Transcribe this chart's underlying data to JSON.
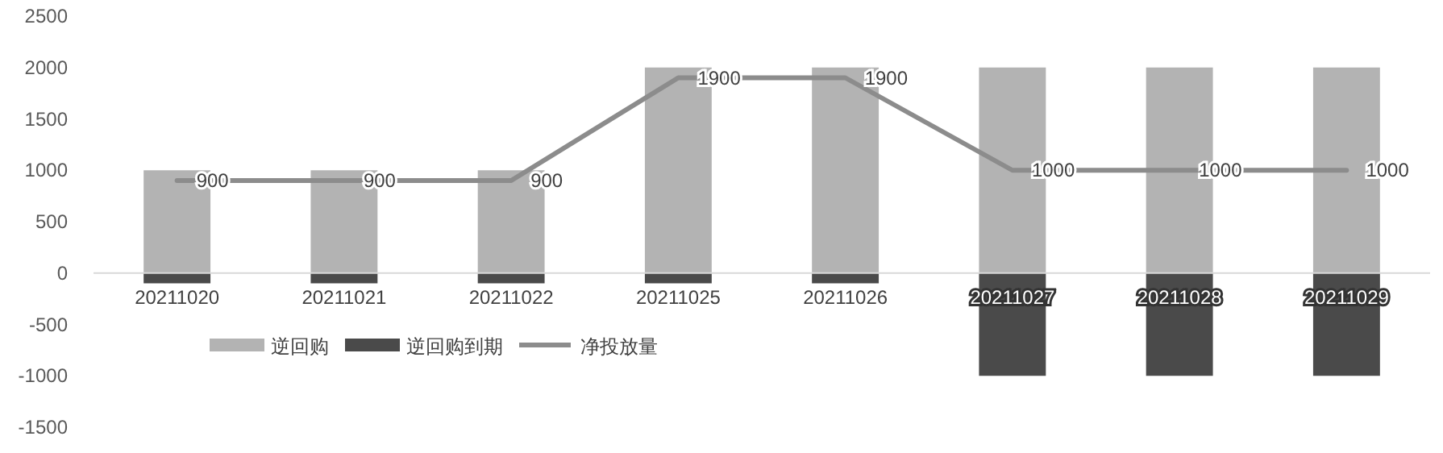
{
  "chart_data": {
    "type": "bar",
    "categories": [
      "20211020",
      "20211021",
      "20211022",
      "20211025",
      "20211026",
      "20211027",
      "20211028",
      "20211029"
    ],
    "series": [
      {
        "name": "逆回购",
        "color": "#b3b3b3",
        "values": [
          1000,
          1000,
          1000,
          2000,
          2000,
          2000,
          2000,
          2000
        ]
      },
      {
        "name": "逆回购到期",
        "color": "#4a4a4a",
        "values": [
          -100,
          -100,
          -100,
          -100,
          -100,
          -1000,
          -1000,
          -1000
        ]
      },
      {
        "name": "净投放量",
        "type": "line",
        "color": "#8c8c8c",
        "values": [
          900,
          900,
          900,
          1900,
          1900,
          1000,
          1000,
          1000
        ],
        "value_labels": [
          "900",
          "900",
          "900",
          "1900",
          "1900",
          "1000",
          "1000",
          "1000"
        ]
      }
    ],
    "stacked": true,
    "ylim": [
      -1500,
      2500
    ],
    "yticks": [
      -1500,
      -1000,
      -500,
      0,
      500,
      1000,
      1500,
      2000,
      2500
    ],
    "grid": false,
    "legend": "bottom left",
    "marker": "none",
    "line_style": "solid"
  }
}
